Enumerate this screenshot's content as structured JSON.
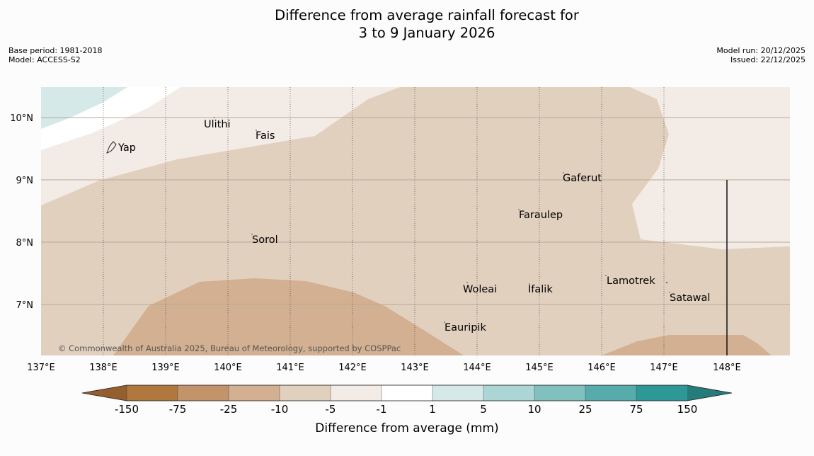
{
  "title_line1": "Difference from average rainfall forecast for",
  "title_line2": "3 to 9 January 2026",
  "base_period": "Base period: 1981-2018",
  "model": "Model: ACCESS-S2",
  "model_run": "Model run: 20/12/2025",
  "issued": "Issued: 22/12/2025",
  "copyright": "© Commonwealth of Australia 2025, Bureau of Meteorology, supported by COSPPac",
  "map": {
    "lat_labels": [
      "10°N",
      "9°N",
      "8°N",
      "7°N"
    ],
    "lon_labels": [
      "137°E",
      "138°E",
      "139°E",
      "140°E",
      "141°E",
      "142°E",
      "143°E",
      "144°E",
      "145°E",
      "146°E",
      "147°E",
      "148°E"
    ],
    "places": [
      "Yap",
      "Ulithi",
      "Fais",
      "Gaferut",
      "Faraulep",
      "Sorol",
      "Woleai",
      "Ifalik",
      "Lamotrek",
      "Satawal",
      "Eauripik"
    ]
  },
  "colorbar": {
    "label": "Difference from average (mm)",
    "ticks": [
      "-150",
      "-75",
      "-25",
      "-10",
      "-5",
      "-1",
      "1",
      "5",
      "10",
      "25",
      "75",
      "150"
    ],
    "colors": {
      "below_min": "#955f2d",
      "bins": [
        "#b0773e",
        "#c3946a",
        "#d2b091",
        "#e2d0bf",
        "#f3ece6",
        "#ffffff",
        "#d5e9e9",
        "#acd5d5",
        "#80c0bf",
        "#57abab",
        "#2e9896"
      ],
      "above_max": "#267c7a"
    }
  }
}
